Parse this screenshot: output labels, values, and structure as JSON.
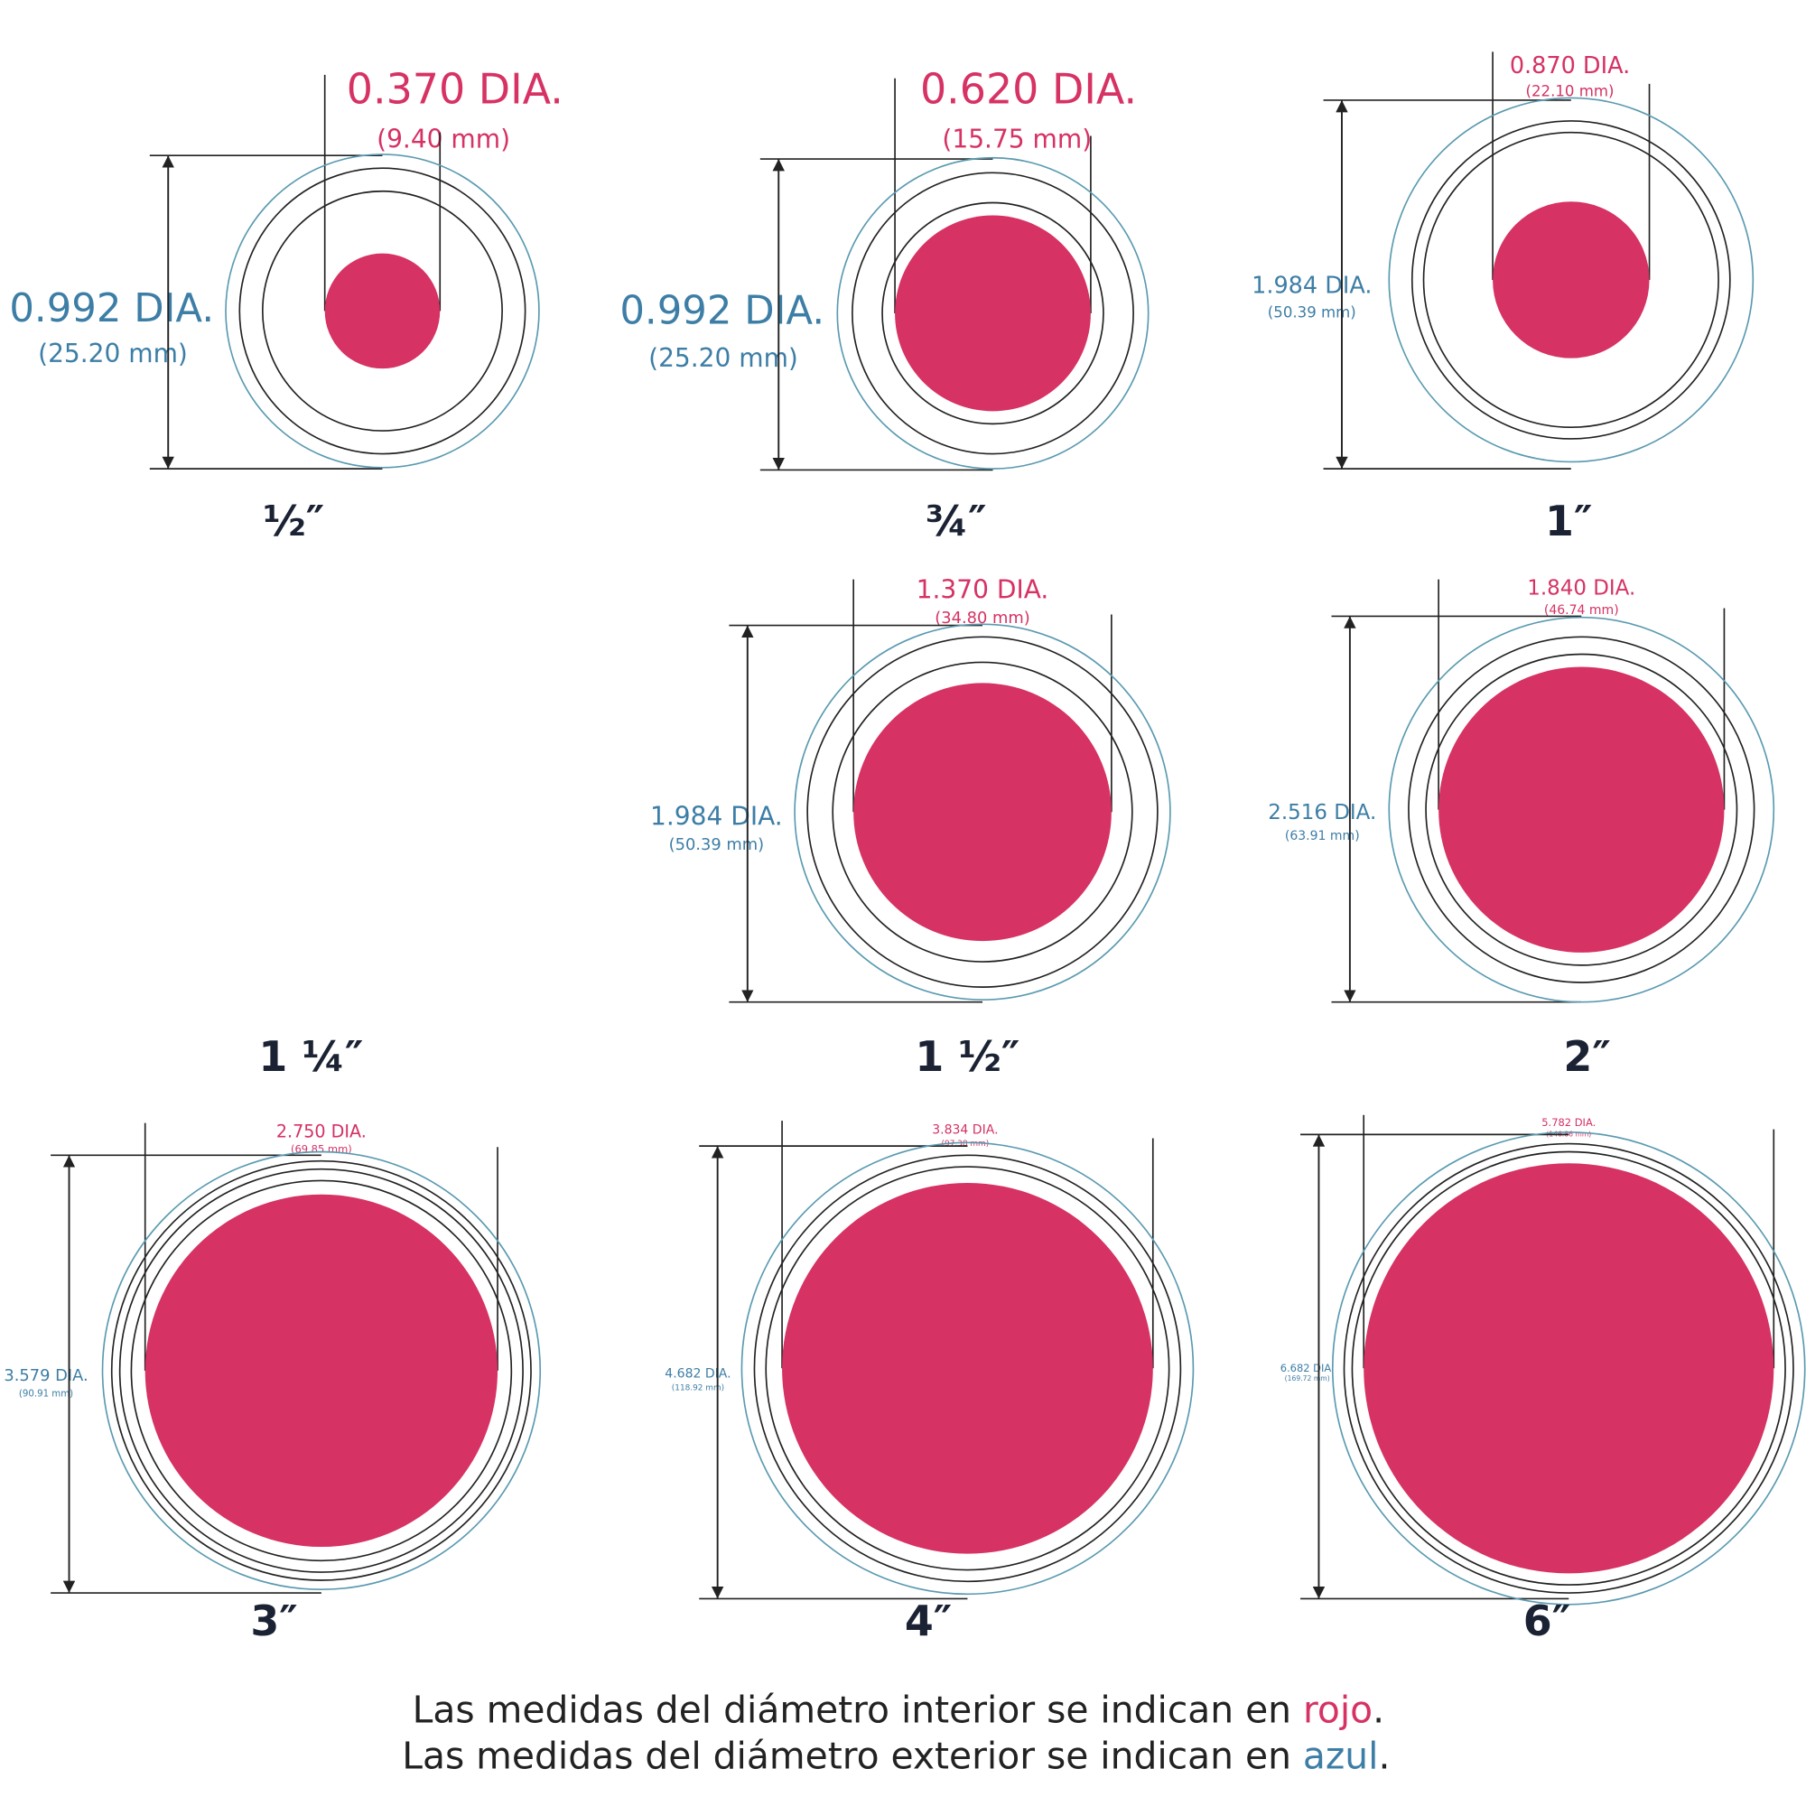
{
  "diagrams": [
    {
      "size": "½″",
      "inner": {
        "dia": "0.370 DIA.",
        "mm": "(9.40 mm)"
      },
      "outer": {
        "dia": "0.992 DIA.",
        "mm": "(25.20 mm)"
      }
    },
    {
      "size": "¾″",
      "inner": {
        "dia": "0.620 DIA.",
        "mm": "(15.75 mm)"
      },
      "outer": {
        "dia": "0.992 DIA.",
        "mm": "(25.20 mm)"
      }
    },
    {
      "size": "1″",
      "inner": {
        "dia": "0.870 DIA.",
        "mm": "(22.10 mm)"
      },
      "outer": {
        "dia": "1.984 DIA.",
        "mm": "(50.39 mm)"
      }
    },
    {
      "size": "1 ¼″"
    },
    {
      "size": "1 ½″",
      "inner": {
        "dia": "1.370 DIA.",
        "mm": "(34.80 mm)"
      },
      "outer": {
        "dia": "1.984 DIA.",
        "mm": "(50.39 mm)"
      }
    },
    {
      "size": "2″",
      "inner": {
        "dia": "1.840 DIA.",
        "mm": "(46.74 mm)"
      },
      "outer": {
        "dia": "2.516 DIA.",
        "mm": "(63.91 mm)"
      }
    },
    {
      "size": "3″",
      "inner": {
        "dia": "2.750 DIA.",
        "mm": "(69.85 mm)"
      },
      "outer": {
        "dia": "3.579 DIA.",
        "mm": "(90.91 mm)"
      }
    },
    {
      "size": "4″",
      "inner": {
        "dia": "3.834 DIA.",
        "mm": "(97.38 mm)"
      },
      "outer": {
        "dia": "4.682 DIA.",
        "mm": "(118.92 mm)"
      }
    },
    {
      "size": "6″",
      "inner": {
        "dia": "5.782 DIA.",
        "mm": "(146.86 mm)"
      },
      "outer": {
        "dia": "6.682 DIA.",
        "mm": "(169.72 mm)"
      }
    }
  ],
  "footer": {
    "line1": {
      "text": "Las medidas del diámetro interior se indican en ",
      "color_word": "rojo",
      "end": "."
    },
    "line2": {
      "text": "Las medidas del diámetro exterior se indican en ",
      "color_word": "azul",
      "end": "."
    }
  }
}
